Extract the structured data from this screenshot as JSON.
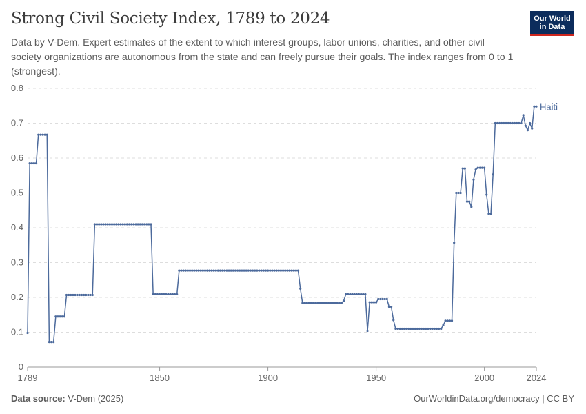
{
  "header": {
    "title": "Strong Civil Society Index, 1789 to 2024",
    "subtitle": "Data by V-Dem. Expert estimates of the extent to which interest groups, labor unions, charities, and other civil society organizations are autonomous from the state and can freely pursue their goals. The index ranges from 0 to 1 (strongest).",
    "logo_line1": "Our World",
    "logo_line2": "in Data"
  },
  "footer": {
    "source_label": "Data source:",
    "source_value": " V-Dem (2025)",
    "url_license": "OurWorldinData.org/democracy | CC BY"
  },
  "colors": {
    "series": "#4c6a9c",
    "grid": "#dddddd",
    "logo_bg": "#0c2c5c",
    "logo_accent": "#ce261e"
  },
  "chart_data": {
    "type": "line",
    "title": "Strong Civil Society Index, 1789 to 2024",
    "xlabel": "",
    "ylabel": "",
    "xlim": [
      1789,
      2024
    ],
    "ylim": [
      0,
      0.8
    ],
    "x_ticks": [
      1789,
      1850,
      1900,
      1950,
      2000,
      2024
    ],
    "y_ticks": [
      0,
      0.1,
      0.2,
      0.3,
      0.4,
      0.5,
      0.6,
      0.7,
      0.8
    ],
    "grid": true,
    "legend": "none",
    "series": [
      {
        "name": "Haiti",
        "segments": [
          [
            1789,
            2024,
            1789,
            0.098
          ],
          [
            1790,
            1793,
            0.585
          ],
          [
            1794,
            1798,
            0.667
          ],
          [
            1799,
            1801,
            0.072
          ],
          [
            1802,
            1806,
            0.145
          ],
          [
            1807,
            1819,
            0.207
          ],
          [
            1820,
            1846,
            0.41
          ],
          [
            1847,
            1858,
            0.209
          ],
          [
            1859,
            1914,
            0.277
          ],
          [
            1915,
            1915,
            0.225
          ],
          [
            1916,
            1934,
            0.184
          ],
          [
            1935,
            1935,
            0.19
          ],
          [
            1936,
            1945,
            0.209
          ],
          [
            1946,
            1946,
            0.104
          ],
          [
            1947,
            1950,
            0.186
          ],
          [
            1951,
            1955,
            0.195
          ],
          [
            1956,
            1957,
            0.173
          ],
          [
            1958,
            1958,
            0.135
          ],
          [
            1959,
            1980,
            0.11
          ],
          [
            1981,
            1981,
            0.12
          ],
          [
            1982,
            1985,
            0.133
          ],
          [
            1986,
            1986,
            0.357
          ],
          [
            1987,
            1989,
            0.5
          ],
          [
            1990,
            1991,
            0.57
          ],
          [
            1992,
            1993,
            0.475
          ],
          [
            1994,
            1994,
            0.46
          ],
          [
            1995,
            1995,
            0.538
          ],
          [
            1996,
            1996,
            0.567
          ],
          [
            1997,
            2000,
            0.572
          ],
          [
            2001,
            2001,
            0.495
          ],
          [
            2002,
            2003,
            0.44
          ],
          [
            2004,
            2004,
            0.553
          ],
          [
            2005,
            2017,
            0.7
          ],
          [
            2018,
            2018,
            0.723
          ],
          [
            2019,
            2019,
            0.693
          ],
          [
            2020,
            2020,
            0.68
          ],
          [
            2021,
            2021,
            0.7
          ],
          [
            2022,
            2022,
            0.685
          ],
          [
            2023,
            2024,
            0.748
          ]
        ]
      }
    ]
  }
}
